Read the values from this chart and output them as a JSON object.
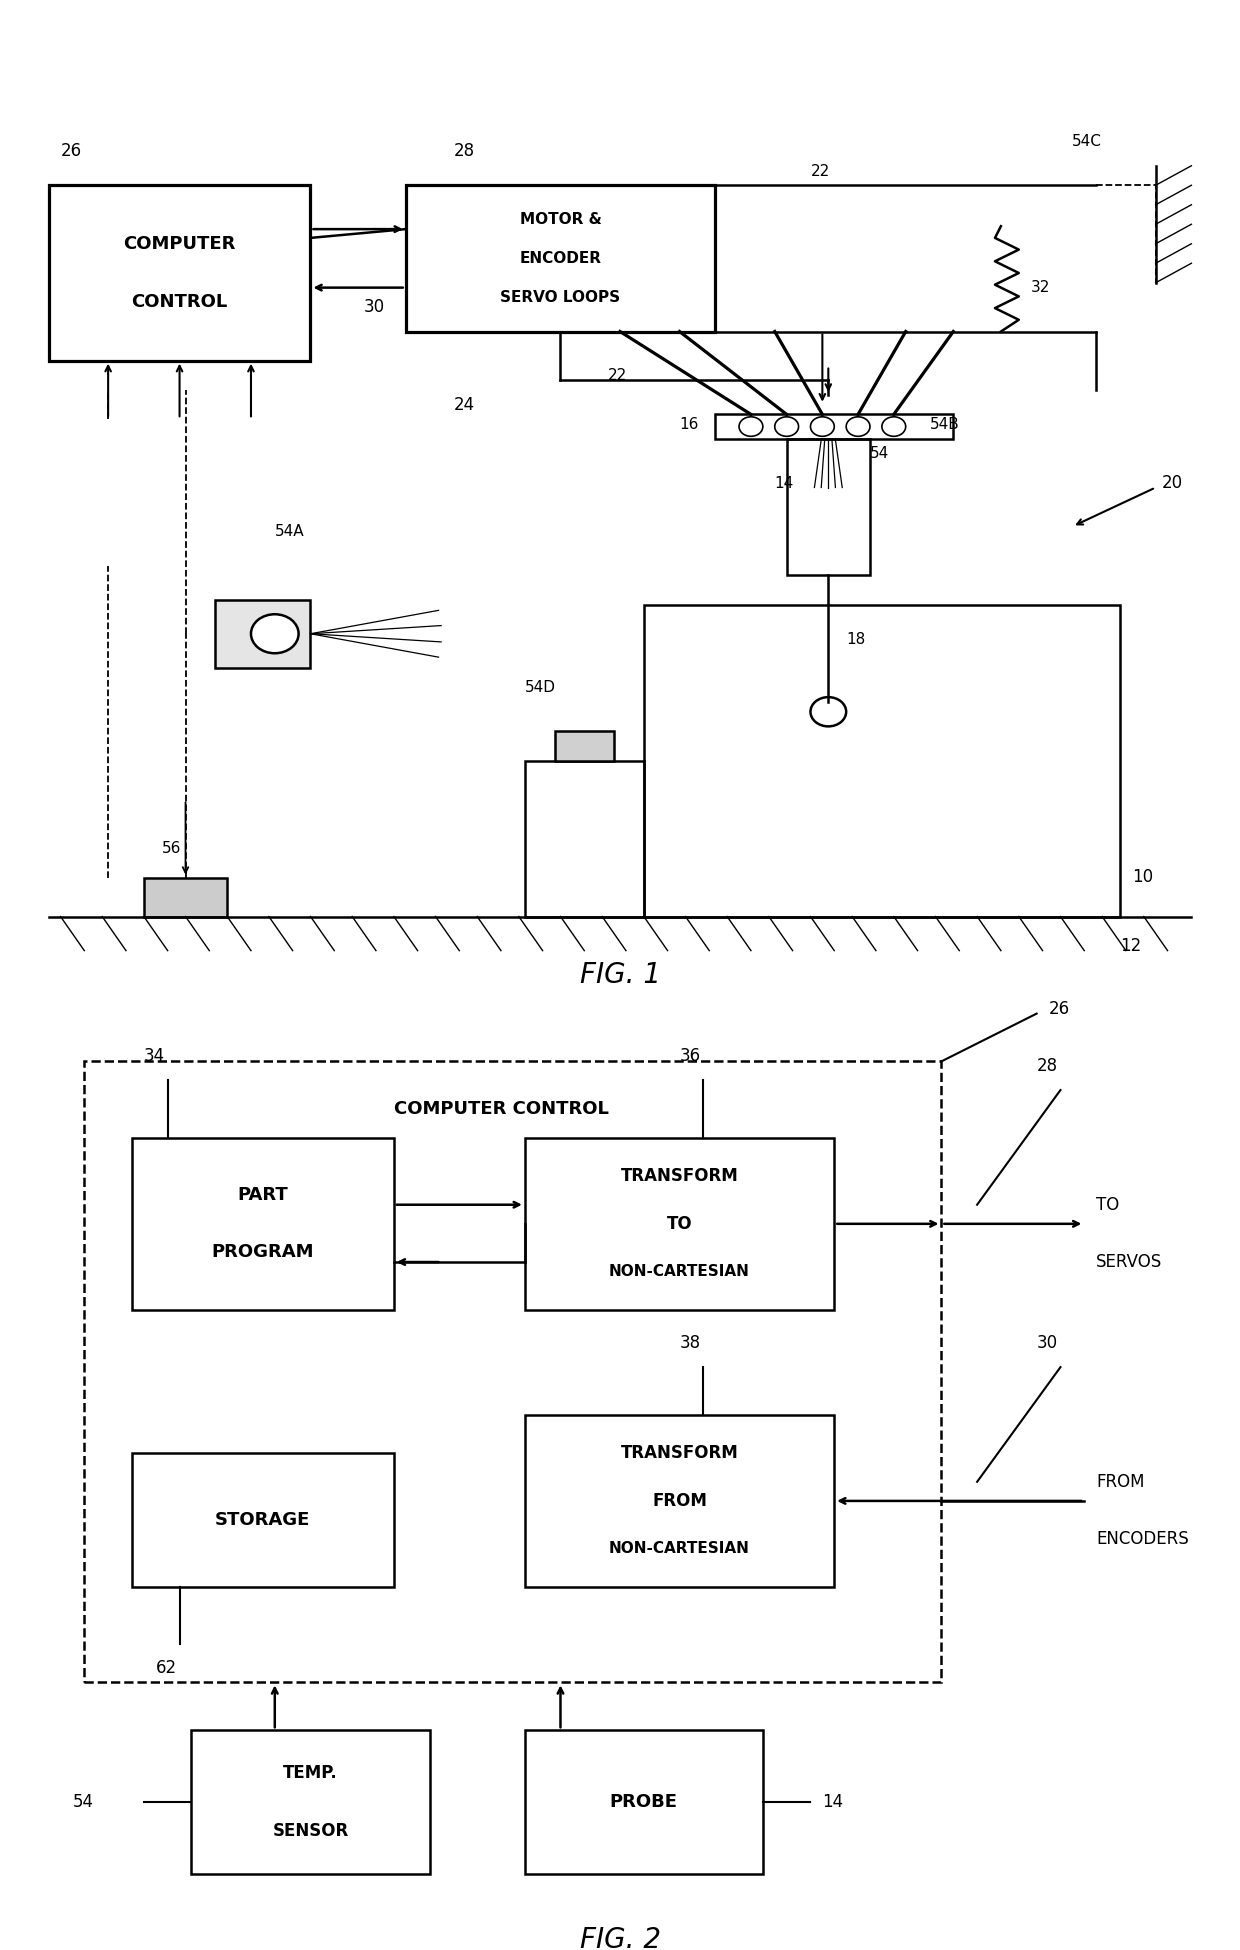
{
  "bg_color": "#ffffff",
  "lc": "#000000",
  "fig1_caption": "FIG. 1",
  "fig2_caption": "FIG. 2",
  "fig2_title": "COMPUTER CONTROL"
}
